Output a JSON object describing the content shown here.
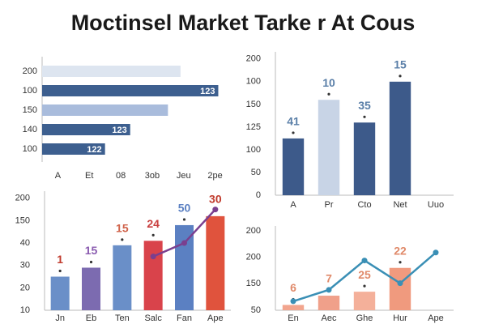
{
  "title": "Moctinsel Market Tarke r At Cous",
  "chart_data": [
    {
      "type": "hbar",
      "categories": [
        "200",
        "100",
        "150",
        "140",
        "100"
      ],
      "values": [
        4.4,
        5.6,
        4.0,
        2.8,
        2.0
      ],
      "colors": [
        "#dde5f0",
        "#3d5f8f",
        "#a9bcdc",
        "#3d5f8f",
        "#3d5f8f"
      ],
      "bar_labels": [
        null,
        "123",
        null,
        "123",
        "122"
      ],
      "xlim": [
        0,
        6
      ],
      "xticks": [
        {
          "value": 0.5,
          "label": "A"
        },
        {
          "value": 1.5,
          "label": "Et"
        },
        {
          "value": 2.5,
          "label": "08"
        },
        {
          "value": 3.5,
          "label": "3ob"
        },
        {
          "value": 4.5,
          "label": "Jeu"
        },
        {
          "value": 5.5,
          "label": "2pe"
        }
      ]
    },
    {
      "type": "bar",
      "categories": [
        "A",
        "Pr",
        "Cto",
        "Net",
        "Uuo"
      ],
      "values": [
        2.5,
        4.2,
        3.2,
        5.0,
        null
      ],
      "colors": [
        "#3d5a8a",
        "#c8d4e6",
        "#3d5a8a",
        "#3d5a8a",
        "#3d5a8a"
      ],
      "bar_labels": [
        "41",
        "10",
        "35",
        "15",
        null
      ],
      "bar_label_colors": [
        "#5a7fa8",
        "#5a7fa8",
        "#5a7fa8",
        "#5a7fa8",
        "#5a7fa8"
      ],
      "ylim": [
        0,
        6.1
      ],
      "yticks": [
        {
          "value": 6,
          "label": "200"
        },
        {
          "value": 5,
          "label": "100"
        },
        {
          "value": 4,
          "label": "150"
        },
        {
          "value": 3,
          "label": "125"
        },
        {
          "value": 2,
          "label": "100"
        },
        {
          "value": 1,
          "label": "50"
        },
        0
      ]
    },
    {
      "type": "bar",
      "categories": [
        "Jn",
        "Eb",
        "Ten",
        "Salc",
        "Fan",
        "Ape"
      ],
      "values": [
        1.5,
        1.9,
        2.9,
        3.1,
        3.8,
        4.2
      ],
      "colors": [
        "#6a8fc8",
        "#7c6bb0",
        "#6a8fc8",
        "#d9434b",
        "#5b80c2",
        "#e0533d"
      ],
      "bar_labels": [
        "1",
        "15",
        "15",
        "24",
        "50",
        "30"
      ],
      "bar_label_colors": [
        "#c0392b",
        "#8a5bb0",
        "#d0634b",
        "#c94040",
        "#5b80c2",
        "#c0392b"
      ],
      "line": {
        "color": "#7a3f8f",
        "values": [
          null,
          null,
          null,
          2.4,
          3.0,
          4.5
        ]
      },
      "ylim": [
        0,
        5.1
      ],
      "yticks": [
        {
          "value": 5,
          "label": "200"
        },
        {
          "value": 4,
          "label": "150"
        },
        {
          "value": 3,
          "label": "40"
        },
        {
          "value": 2,
          "label": "30"
        },
        {
          "value": 1,
          "label": "20"
        },
        {
          "value": 0,
          "label": "10"
        }
      ]
    },
    {
      "type": "bar",
      "categories": [
        "En",
        "Aec",
        "Ghe",
        "Hur",
        "Ape"
      ],
      "values": [
        0.2,
        0.55,
        0.7,
        1.6,
        null
      ],
      "colors": [
        "#f2a58e",
        "#f0a08a",
        "#f4b09a",
        "#f09a7e",
        "#f09a7e"
      ],
      "bar_labels": [
        "6",
        "7",
        "25",
        "22",
        null
      ],
      "bar_label_colors": [
        "#e08a6a",
        "#e08a6a",
        "#e08a6a",
        "#e08a6a",
        "#e08a6a"
      ],
      "line": {
        "color": "#3a8fb5",
        "values": [
          0.34,
          0.77,
          1.88,
          1.02,
          2.18
        ]
      },
      "ylim": [
        0,
        3
      ],
      "yticks": [
        {
          "value": 3,
          "label": "200"
        },
        {
          "value": 2,
          "label": "200"
        },
        {
          "value": 1,
          "label": "150"
        },
        {
          "value": 0,
          "label": "50"
        }
      ]
    }
  ]
}
